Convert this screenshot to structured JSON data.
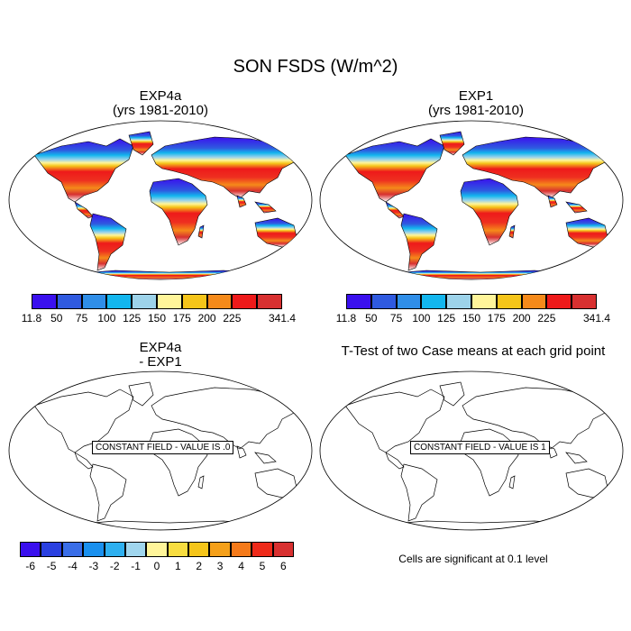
{
  "main_title": "SON FSDS (W/m^2)",
  "panels": {
    "top_left": {
      "title": "EXP4a",
      "subtitle": "(yrs 1981-2010)"
    },
    "top_right": {
      "title": "EXP1",
      "subtitle": "(yrs 1981-2010)"
    },
    "bottom_left": {
      "title": "EXP4a",
      "subtitle": "- EXP1",
      "constant_label": "CONSTANT FIELD - VALUE IS .0"
    },
    "bottom_right": {
      "title": "T-Test of two Case means at each grid point",
      "constant_label": "CONSTANT FIELD - VALUE IS 1"
    }
  },
  "colorbar_fsds": {
    "labels": [
      "11.8",
      "50",
      "75",
      "100",
      "125",
      "150",
      "175",
      "200",
      "225",
      "341.4"
    ],
    "colors": [
      "#3a10ee",
      "#2f5ae0",
      "#2f8ee8",
      "#13b6ee",
      "#9dd3ea",
      "#fff59a",
      "#f5c51a",
      "#f58a1a",
      "#ee1a1a",
      "#d83030"
    ]
  },
  "colorbar_diff": {
    "labels": [
      "-6",
      "-5",
      "-4",
      "-3",
      "-2",
      "-1",
      "0",
      "1",
      "2",
      "3",
      "4",
      "5",
      "6"
    ],
    "colors": [
      "#3a10ee",
      "#2a40e0",
      "#3a6ee8",
      "#1a90ee",
      "#2eb0f0",
      "#a0d6ee",
      "#fff59a",
      "#f8dd40",
      "#f5c51a",
      "#f5a01a",
      "#f57a1a",
      "#ee2a1a",
      "#d83030"
    ]
  },
  "footnote": "Cells are significant at 0.1 level"
}
